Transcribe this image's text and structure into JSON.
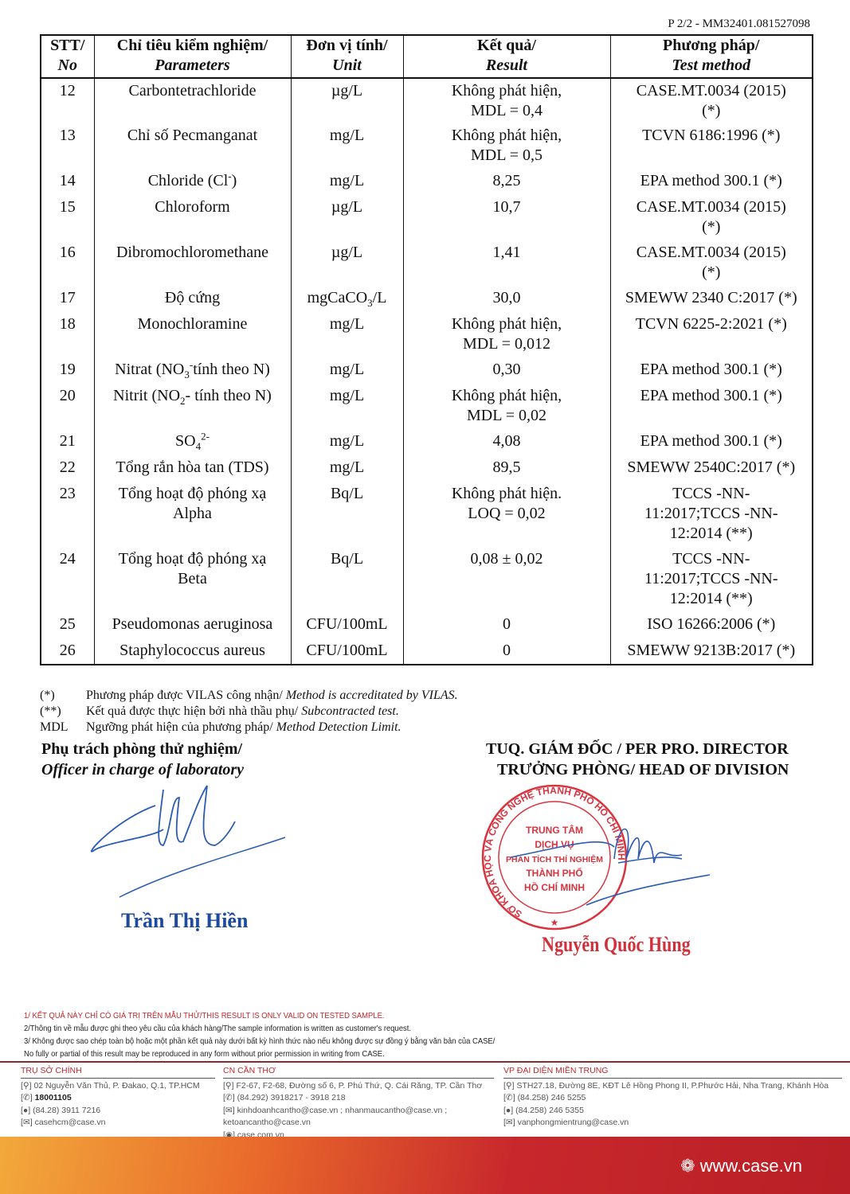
{
  "page_ref": "P 2/2 - MM32401.081527098",
  "table": {
    "headers": [
      {
        "vi": "STT/",
        "en": "No"
      },
      {
        "vi": "Chỉ tiêu kiểm nghiệm/",
        "en": "Parameters"
      },
      {
        "vi": "Đơn vị tính/",
        "en": "Unit"
      },
      {
        "vi": "Kết quả/",
        "en": "Result"
      },
      {
        "vi": "Phương pháp/",
        "en": "Test method"
      }
    ],
    "rows": [
      {
        "no": "12",
        "param": {
          "pre": "Carbontetrachloride"
        },
        "unit": {
          "pre": "µg/L"
        },
        "result": "Không phát hiện,\nMDL = 0,4",
        "method": "CASE.MT.0034 (2015)\n(*)"
      },
      {
        "no": "13",
        "param": {
          "pre": "Chỉ số Pecmanganat"
        },
        "unit": {
          "pre": "mg/L"
        },
        "result": "Không phát hiện,\nMDL = 0,5",
        "method": "TCVN 6186:1996 (*)"
      },
      {
        "no": "14",
        "param": {
          "pre": "Chloride (Cl",
          "sup": "-",
          "post": ")"
        },
        "unit": {
          "pre": "mg/L"
        },
        "result": "8,25",
        "method": "EPA method 300.1 (*)"
      },
      {
        "no": "15",
        "param": {
          "pre": "Chloroform"
        },
        "unit": {
          "pre": "µg/L"
        },
        "result": "10,7",
        "method": "CASE.MT.0034 (2015)\n(*)"
      },
      {
        "no": "16",
        "param": {
          "pre": "Dibromochloromethane"
        },
        "unit": {
          "pre": "µg/L"
        },
        "result": "1,41",
        "method": "CASE.MT.0034 (2015)\n(*)"
      },
      {
        "no": "17",
        "param": {
          "pre": "Độ cứng"
        },
        "unit": {
          "pre": "mgCaCO",
          "sub": "3",
          "post": "/L"
        },
        "result": "30,0",
        "method": "SMEWW 2340 C:2017 (*)"
      },
      {
        "no": "18",
        "param": {
          "pre": "Monochloramine"
        },
        "unit": {
          "pre": "mg/L"
        },
        "result": "Không phát hiện,\nMDL = 0,012",
        "method": "TCVN 6225-2:2021 (*)"
      },
      {
        "no": "19",
        "param": {
          "pre": "Nitrat (NO",
          "sub": "3",
          "sup": "-",
          "post": "tính theo N)"
        },
        "unit": {
          "pre": "mg/L"
        },
        "result": "0,30",
        "method": "EPA method 300.1 (*)"
      },
      {
        "no": "20",
        "param": {
          "pre": "Nitrit (NO",
          "sub": "2",
          "post": "- tính theo N)"
        },
        "unit": {
          "pre": "mg/L"
        },
        "result": "Không phát hiện,\nMDL = 0,02",
        "method": "EPA method 300.1 (*)"
      },
      {
        "no": "21",
        "param": {
          "pre": "SO",
          "sub": "4",
          "sup": "2-"
        },
        "unit": {
          "pre": "mg/L"
        },
        "result": "4,08",
        "method": "EPA method 300.1 (*)"
      },
      {
        "no": "22",
        "param": {
          "pre": "Tổng rắn hòa tan (TDS)"
        },
        "unit": {
          "pre": "mg/L"
        },
        "result": "89,5",
        "method": "SMEWW 2540C:2017 (*)"
      },
      {
        "no": "23",
        "param": {
          "pre": "Tổng hoạt độ phóng xạ\nAlpha"
        },
        "unit": {
          "pre": "Bq/L"
        },
        "result": "Không phát hiện.\nLOQ = 0,02",
        "method": "TCCS -NN-\n11:2017;TCCS -NN-\n12:2014 (**)"
      },
      {
        "no": "24",
        "param": {
          "pre": "Tổng hoạt độ phóng xạ\nBeta"
        },
        "unit": {
          "pre": "Bq/L"
        },
        "result": "0,08 ± 0,02",
        "method": "TCCS -NN-\n11:2017;TCCS -NN-\n12:2014 (**)"
      },
      {
        "no": "25",
        "param": {
          "pre": "Pseudomonas aeruginosa"
        },
        "unit": {
          "pre": "CFU/100mL"
        },
        "result": "0",
        "method": "ISO 16266:2006 (*)"
      },
      {
        "no": "26",
        "param": {
          "pre": "Staphylococcus aureus"
        },
        "unit": {
          "pre": "CFU/100mL"
        },
        "result": "0",
        "method": "SMEWW 9213B:2017 (*)"
      }
    ]
  },
  "notes": [
    {
      "key": "(*)",
      "vi": "Phương pháp được VILAS công nhận/ ",
      "en": "Method is accreditated by VILAS."
    },
    {
      "key": "(**)",
      "vi": "Kết quả được thực hiện bởi nhà thầu phụ/ ",
      "en": "Subcontracted test."
    },
    {
      "key": "MDL",
      "vi": "Ngưỡng phát hiện của phương pháp/ ",
      "en": "Method Detection Limit."
    }
  ],
  "signatures": {
    "left_title_vi": "Phụ trách phòng thử nghiệm/",
    "left_title_en": "Officer in charge of laboratory",
    "left_name": "Trần Thị Hiền",
    "right_title_1": "TUQ. GIÁM ĐỐC / PER PRO. DIRECTOR",
    "right_title_2": "TRƯỞNG PHÒNG/ HEAD OF DIVISION",
    "right_name": "Nguyễn Quốc Hùng",
    "stamp": {
      "ring": "SỞ KHOA HỌC VÀ CÔNG NGHỆ THÀNH PHỐ HỒ CHÍ MINH",
      "center": [
        "TRUNG TÂM",
        "DỊCH VỤ",
        "PHÂN TÍCH THÍ NGHIỆM",
        "THÀNH PHỐ",
        "HỒ CHÍ MINH"
      ],
      "color": "#d8343f"
    }
  },
  "disclaimer": [
    "1/ KẾT QUẢ NÀY CHỈ CÓ GIÁ TRỊ TRÊN MẪU THỬ/THIS RESULT IS ONLY VALID ON TESTED SAMPLE.",
    "2/Thông tin về mẫu được ghi theo yêu cầu của khách hàng/The sample information is written as customer's request.",
    "3/ Không được sao chép toàn bộ hoặc một phần kết quả này dưới bất kỳ hình thức nào nếu không được sự đồng ý bằng văn bản của CASE/",
    "No fully or partial of this result may be reproduced in any form without prior permission in writing from CASE."
  ],
  "offices": [
    {
      "title": "TRỤ SỞ CHÍNH",
      "lines": [
        "02 Nguyễn Văn Thủ, P. Đakao, Q.1, TP.HCM",
        "18001105",
        "(84.28) 3911 7216",
        "casehcm@case.vn"
      ]
    },
    {
      "title": "CN CẦN THƠ",
      "lines": [
        "F2-67, F2-68, Đường số 6, P. Phú Thứ, Q. Cái Răng, TP. Cần Thơ",
        "(84.292) 3918217 - 3918 218",
        "kinhdoanhcantho@case.vn ; nhanmaucantho@case.vn ;\n    ketoancantho@case.vn",
        "case.com.vn"
      ]
    },
    {
      "title": "VP ĐẠI DIỆN MIỀN TRUNG",
      "lines": [
        "STH27.18, Đường 8E, KĐT Lê Hồng Phong II, P.Phước Hải, Nha Trang, Khánh Hòa",
        "(84.258) 246 5255",
        "(84.258) 246 5355",
        "vanphongmientrung@case.vn"
      ]
    }
  ],
  "website": "www.case.vn"
}
